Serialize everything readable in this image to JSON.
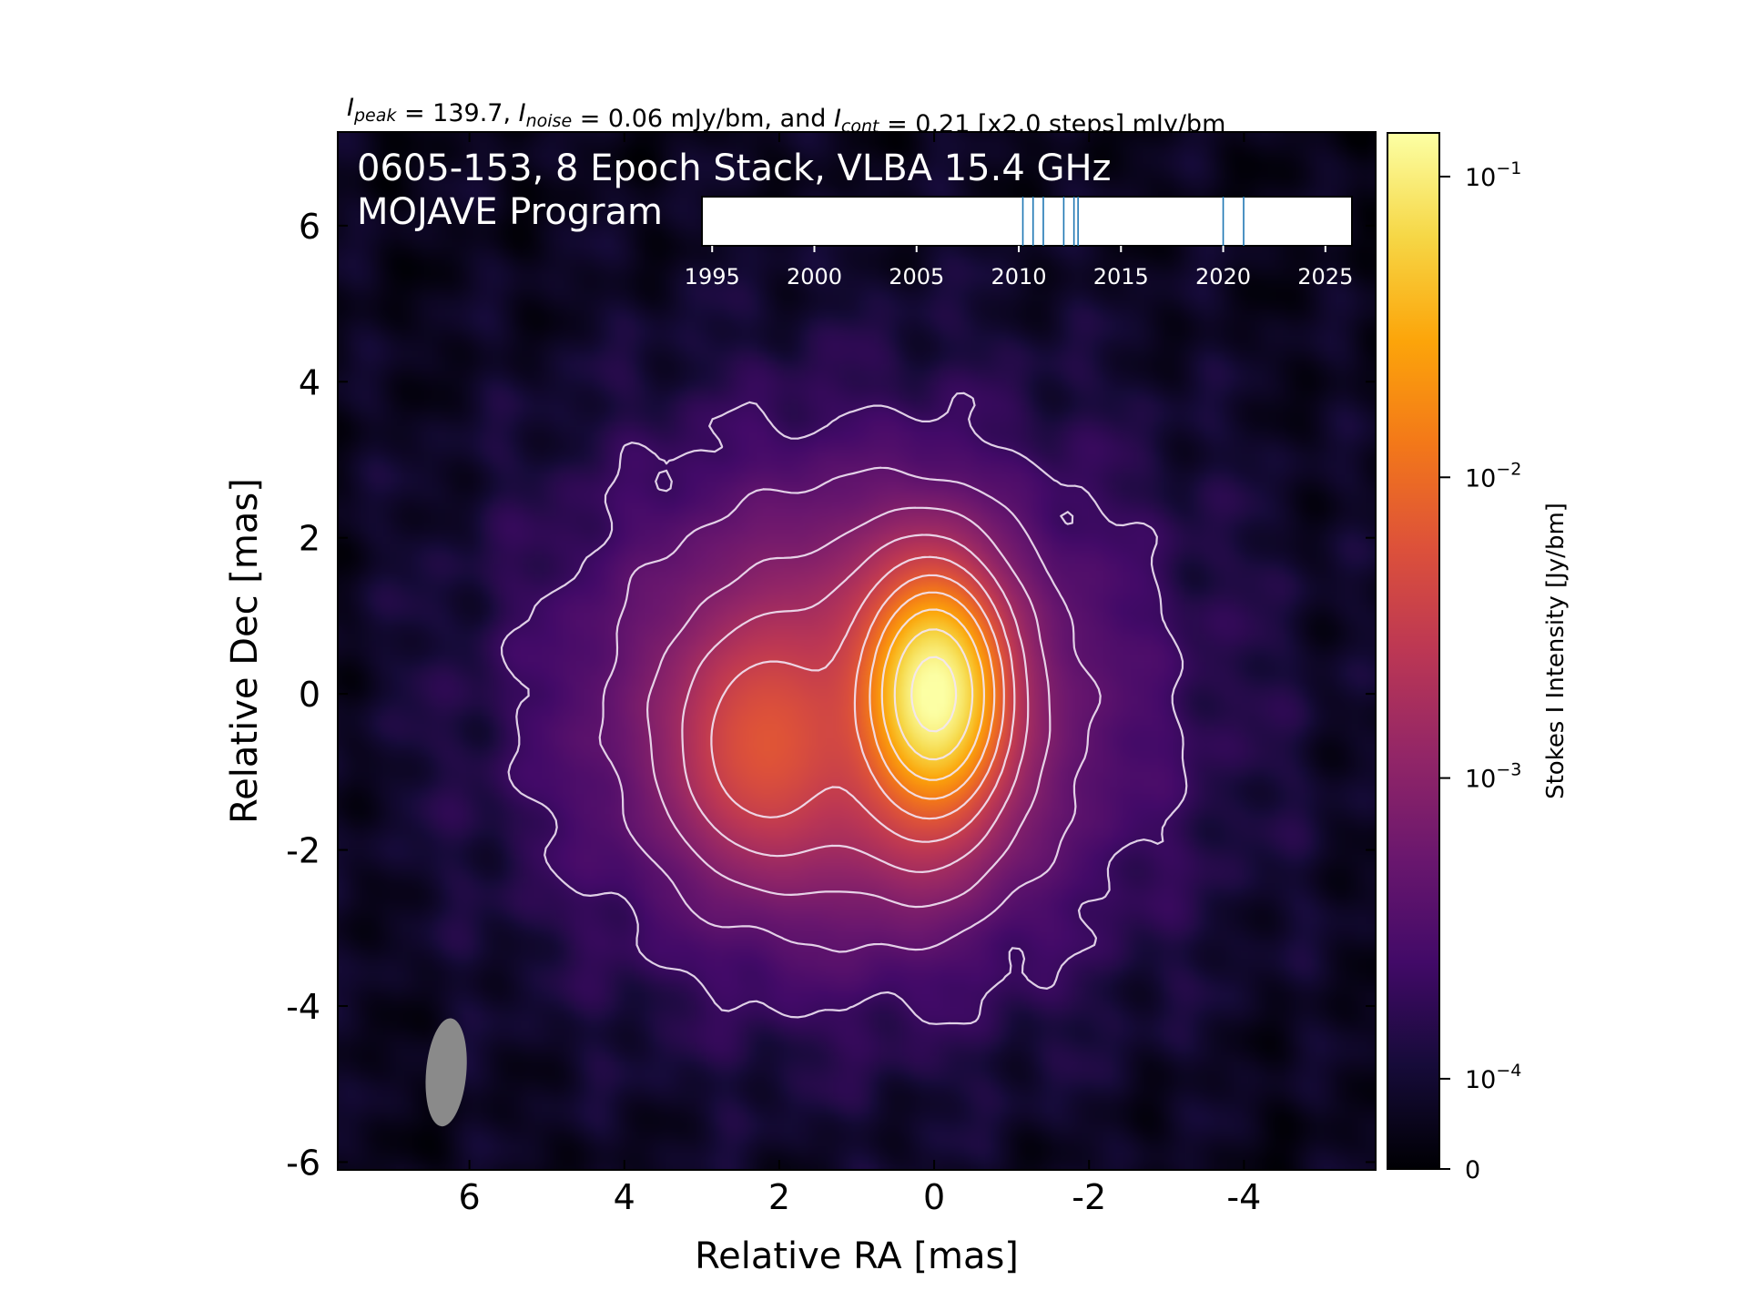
{
  "chart_data": {
    "type": "heatmap",
    "title_parts": [
      {
        "text": "I",
        "style": "italic",
        "sub": "peak"
      },
      {
        "text": " = 139.7, "
      },
      {
        "text": "I",
        "style": "italic",
        "sub": "noise"
      },
      {
        "text": " = 0.06 mJy/bm, and "
      },
      {
        "text": "I",
        "style": "italic",
        "sub": "cont"
      },
      {
        "text": " = 0.21 [x2.0 steps] mJy/bm"
      }
    ],
    "annotation_lines": [
      "0605-153, 8 Epoch Stack, VLBA 15.4 GHz",
      "MOJAVE Program"
    ],
    "xlabel": "Relative RA [mas]",
    "ylabel": "Relative Dec [mas]",
    "xlim": [
      7.7,
      -5.7
    ],
    "ylim": [
      -6.1,
      7.2
    ],
    "x_ticks": [
      6,
      4,
      2,
      0,
      -2,
      -4
    ],
    "y_ticks": [
      6,
      4,
      2,
      0,
      -2,
      -4,
      -6
    ],
    "colormap": "inferno",
    "colorbar": {
      "label": "Stokes I Intensity [Jy/bm]",
      "scale": "symlog",
      "ticks": [
        {
          "value": 0.1,
          "base": "10",
          "exp": "−1"
        },
        {
          "value": 0.01,
          "base": "10",
          "exp": "−2"
        },
        {
          "value": 0.001,
          "base": "10",
          "exp": "−3"
        },
        {
          "value": 0.0001,
          "base": "10",
          "exp": "−4"
        },
        {
          "value": 0,
          "base": "0",
          "exp": ""
        }
      ],
      "max": 0.1397
    },
    "components": [
      {
        "name": "core",
        "ra": 0.0,
        "dec": 0.0,
        "peak_jy": 0.1397
      },
      {
        "name": "jet",
        "ra": 2.2,
        "dec": -0.65,
        "peak_jy": 0.0045
      }
    ],
    "contour_base_mjy": 0.21,
    "contour_step": 2.0,
    "beam": {
      "ra": 6.3,
      "dec": -4.85,
      "major_mas": 1.4,
      "minor_mas": 0.52,
      "pa_deg": -5,
      "color": "#8a8a8a"
    },
    "epoch_timeline": {
      "ticks": [
        1995,
        2000,
        2005,
        2010,
        2015,
        2020,
        2025
      ],
      "range": [
        1994.5,
        2026.3
      ],
      "epochs": [
        2010.2,
        2010.7,
        2011.2,
        2012.2,
        2012.7,
        2012.9,
        2020.0,
        2021.0
      ],
      "line_color": "#1f77b4"
    }
  }
}
